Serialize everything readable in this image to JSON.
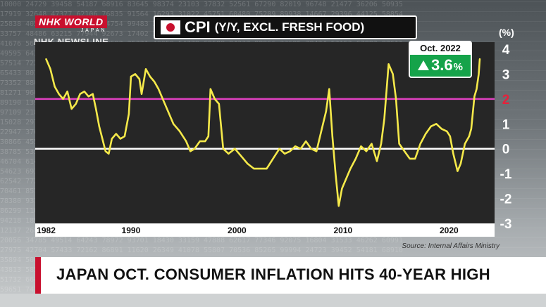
{
  "broadcaster": {
    "logo_top": "NHK WORLD",
    "logo_sub": "JAPAN",
    "program": "NHK NEWSLINE"
  },
  "chart_data": {
    "type": "line",
    "title": "CPI",
    "subtitle": "(Y/Y, EXCL. FRESH FOOD)",
    "ylabel": "(%)",
    "x_ticks": [
      "1982",
      "1990",
      "2000",
      "2010",
      "2020"
    ],
    "y_ticks": [
      "4",
      "3",
      "2",
      "1",
      "0",
      "-1",
      "-2",
      "-3"
    ],
    "ylim": [
      -3,
      4
    ],
    "xlim": [
      1981.5,
      2023.5
    ],
    "reference_lines": [
      {
        "y": 0,
        "color": "#ffffff"
      },
      {
        "y": 2,
        "color": "#e040c0",
        "label": "2",
        "label_color": "#e8203a"
      }
    ],
    "series": [
      {
        "color": "#f5e94a",
        "points": [
          [
            1982.0,
            3.6
          ],
          [
            1982.4,
            3.2
          ],
          [
            1982.8,
            2.5
          ],
          [
            1983.2,
            2.2
          ],
          [
            1983.6,
            2.0
          ],
          [
            1984.0,
            2.3
          ],
          [
            1984.4,
            1.6
          ],
          [
            1984.8,
            1.8
          ],
          [
            1985.2,
            2.2
          ],
          [
            1985.6,
            2.3
          ],
          [
            1986.0,
            2.1
          ],
          [
            1986.4,
            2.2
          ],
          [
            1986.7,
            1.6
          ],
          [
            1987.0,
            0.9
          ],
          [
            1987.3,
            0.4
          ],
          [
            1987.6,
            -0.1
          ],
          [
            1987.9,
            -0.2
          ],
          [
            1988.2,
            0.4
          ],
          [
            1988.6,
            0.6
          ],
          [
            1989.0,
            0.4
          ],
          [
            1989.4,
            0.5
          ],
          [
            1989.8,
            1.4
          ],
          [
            1990.0,
            2.9
          ],
          [
            1990.4,
            3.0
          ],
          [
            1990.8,
            2.8
          ],
          [
            1991.0,
            2.2
          ],
          [
            1991.4,
            3.2
          ],
          [
            1991.8,
            2.9
          ],
          [
            1992.2,
            2.7
          ],
          [
            1992.6,
            2.4
          ],
          [
            1993.0,
            2.0
          ],
          [
            1993.5,
            1.5
          ],
          [
            1994.0,
            1.0
          ],
          [
            1994.6,
            0.7
          ],
          [
            1995.2,
            0.3
          ],
          [
            1995.6,
            -0.1
          ],
          [
            1996.0,
            0.0
          ],
          [
            1996.5,
            0.3
          ],
          [
            1997.0,
            0.3
          ],
          [
            1997.3,
            0.5
          ],
          [
            1997.5,
            2.4
          ],
          [
            1997.9,
            2.0
          ],
          [
            1998.3,
            1.8
          ],
          [
            1998.7,
            0.0
          ],
          [
            1999.2,
            -0.2
          ],
          [
            1999.8,
            0.0
          ],
          [
            2000.4,
            -0.3
          ],
          [
            2001.0,
            -0.6
          ],
          [
            2001.6,
            -0.8
          ],
          [
            2002.2,
            -0.8
          ],
          [
            2002.8,
            -0.8
          ],
          [
            2003.4,
            -0.4
          ],
          [
            2004.0,
            0.0
          ],
          [
            2004.5,
            -0.2
          ],
          [
            2005.0,
            -0.1
          ],
          [
            2005.5,
            0.1
          ],
          [
            2006.0,
            0.0
          ],
          [
            2006.5,
            0.3
          ],
          [
            2007.0,
            0.0
          ],
          [
            2007.5,
            -0.1
          ],
          [
            2008.0,
            0.8
          ],
          [
            2008.4,
            1.5
          ],
          [
            2008.7,
            2.4
          ],
          [
            2009.0,
            0.5
          ],
          [
            2009.3,
            -1.0
          ],
          [
            2009.6,
            -2.3
          ],
          [
            2009.9,
            -1.6
          ],
          [
            2010.3,
            -1.2
          ],
          [
            2010.7,
            -0.8
          ],
          [
            2011.2,
            -0.4
          ],
          [
            2011.7,
            0.1
          ],
          [
            2012.2,
            -0.1
          ],
          [
            2012.7,
            0.2
          ],
          [
            2013.2,
            -0.5
          ],
          [
            2013.6,
            0.2
          ],
          [
            2013.9,
            1.2
          ],
          [
            2014.3,
            3.4
          ],
          [
            2014.7,
            3.0
          ],
          [
            2015.0,
            2.0
          ],
          [
            2015.3,
            0.2
          ],
          [
            2015.8,
            -0.1
          ],
          [
            2016.3,
            -0.4
          ],
          [
            2016.8,
            -0.4
          ],
          [
            2017.3,
            0.2
          ],
          [
            2017.8,
            0.6
          ],
          [
            2018.3,
            0.9
          ],
          [
            2018.8,
            1.0
          ],
          [
            2019.3,
            0.8
          ],
          [
            2019.8,
            0.7
          ],
          [
            2020.1,
            0.5
          ],
          [
            2020.4,
            -0.2
          ],
          [
            2020.8,
            -0.9
          ],
          [
            2021.1,
            -0.6
          ],
          [
            2021.5,
            0.2
          ],
          [
            2021.9,
            0.5
          ],
          [
            2022.1,
            0.8
          ],
          [
            2022.4,
            2.1
          ],
          [
            2022.6,
            2.4
          ],
          [
            2022.8,
            3.0
          ],
          [
            2022.9,
            3.6
          ]
        ]
      }
    ]
  },
  "callout": {
    "date": "Oct. 2022",
    "value": "3.6",
    "unit": "%"
  },
  "source": "Source: Internal Affairs Ministry",
  "headline": "JAPAN OCT. CONSUMER INFLATION HITS 40-YEAR HIGH",
  "colors": {
    "line": "#f5e94a",
    "target_line": "#e040c0",
    "target_label": "#e8203a",
    "callout_green": "#15a34a",
    "accent_red": "#c8102e"
  }
}
